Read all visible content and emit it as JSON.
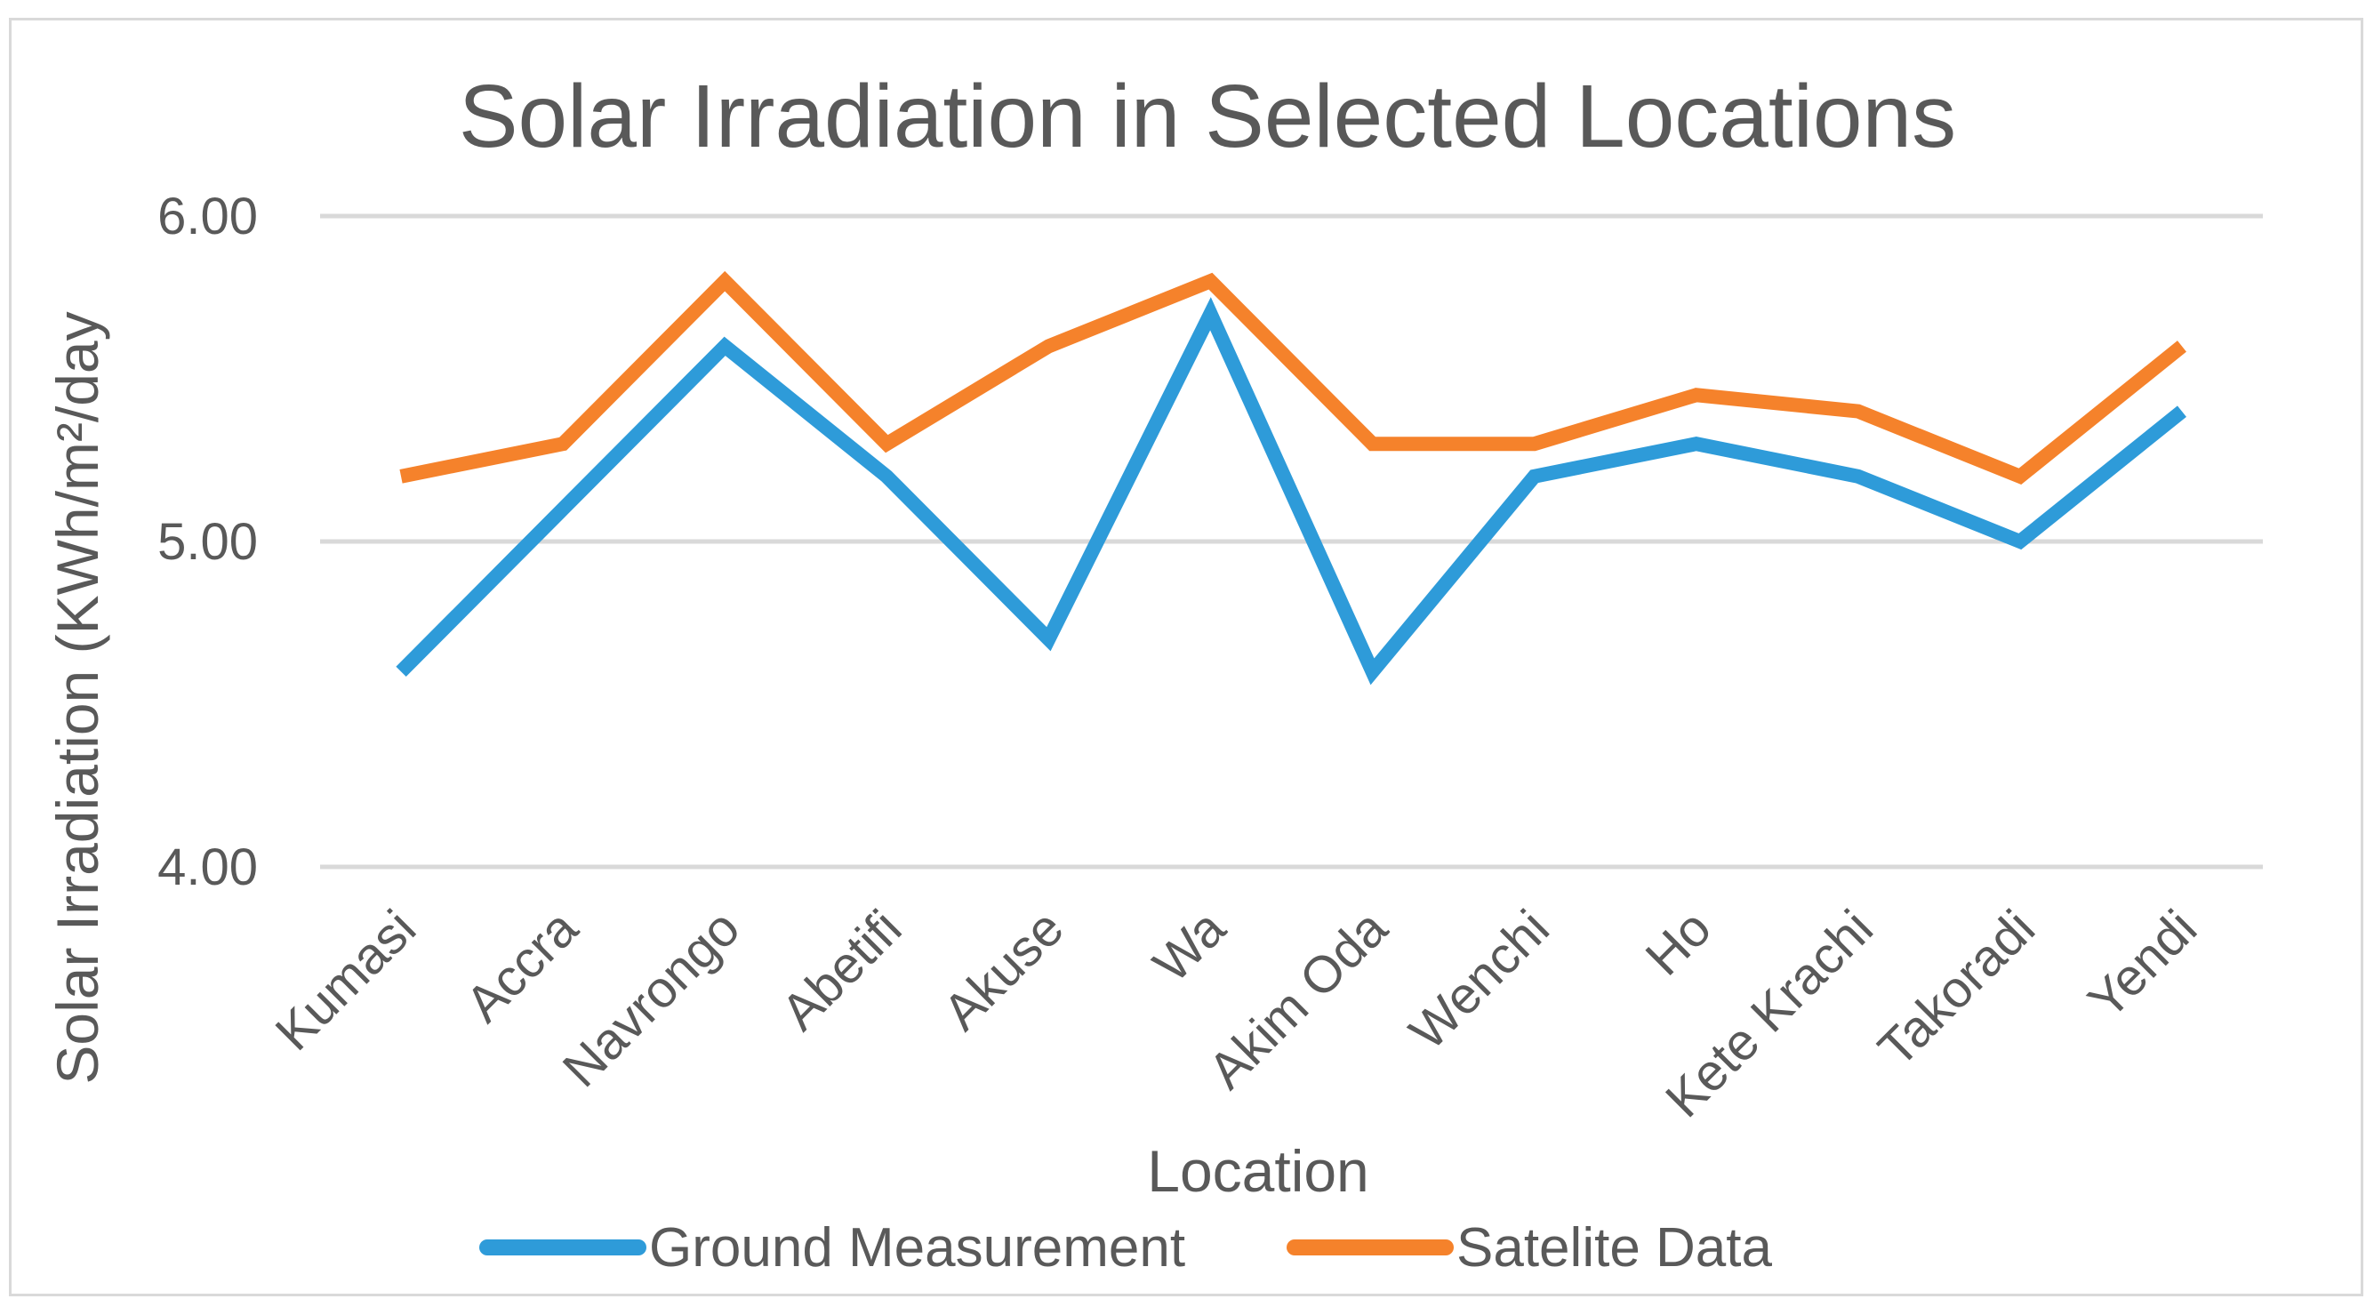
{
  "chart_data": {
    "type": "line",
    "title": "Solar Irradiation in Selected Locations",
    "xlabel": "Location",
    "ylabel": "Solar Irradiation (KWh/m²/day",
    "categories": [
      "Kumasi",
      "Accra",
      "Navrongo",
      "Abetifi",
      "Akuse",
      "Wa",
      "Akim Oda",
      "Wenchi",
      "Ho",
      "Kete Krachi",
      "Takoradi",
      "Yendi"
    ],
    "series": [
      {
        "name": "Ground Measurement",
        "color": "#2e9bd9",
        "values": [
          4.6,
          5.1,
          5.6,
          5.2,
          4.7,
          5.7,
          4.6,
          5.2,
          5.3,
          5.2,
          5.0,
          5.4
        ]
      },
      {
        "name": "Satelite Data",
        "color": "#f5822b",
        "values": [
          5.2,
          5.3,
          5.8,
          5.3,
          5.6,
          5.8,
          5.3,
          5.3,
          5.45,
          5.4,
          5.2,
          5.6
        ]
      }
    ],
    "ylim": [
      4.0,
      6.0
    ],
    "yticks": [
      "4.00",
      "5.00",
      "6.00"
    ],
    "grid": true,
    "legend": "bottom"
  }
}
